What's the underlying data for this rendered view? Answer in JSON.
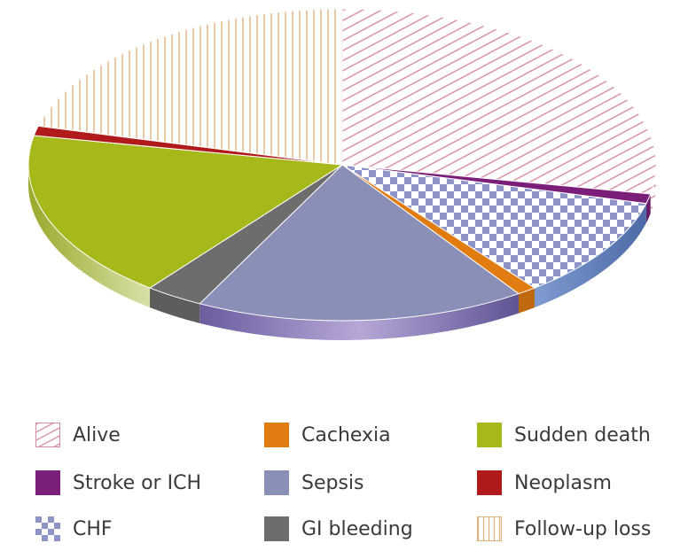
{
  "chart_data": {
    "type": "pie",
    "style": "3d-tilted",
    "legend_placement": "bottom",
    "slices": [
      {
        "label": "Alive",
        "value": 28.0,
        "color": "#d58aa3",
        "pattern": "diagonal-stripes"
      },
      {
        "label": "Stroke or ICH",
        "value": 1.0,
        "color": "#7b1e7a",
        "pattern": "solid"
      },
      {
        "label": "CHF",
        "value": 10.5,
        "color": "#8e95c6",
        "pattern": "checkerboard"
      },
      {
        "label": "Cachexia",
        "value": 1.0,
        "color": "#e07c10",
        "pattern": "solid"
      },
      {
        "label": "Sepsis",
        "value": 17.0,
        "color": "#8a8fb8",
        "pattern": "solid"
      },
      {
        "label": "GI bleeding",
        "value": 3.0,
        "color": "#6d6d6d",
        "pattern": "solid"
      },
      {
        "label": "Sudden death",
        "value": 17.5,
        "color": "#a7b81a",
        "pattern": "solid"
      },
      {
        "label": "Neoplasm",
        "value": 1.0,
        "color": "#b01a1a",
        "pattern": "solid"
      },
      {
        "label": "Follow-up loss",
        "value": 21.0,
        "color": "#e0b280",
        "pattern": "vertical-stripes"
      }
    ]
  },
  "legend": {
    "items": [
      {
        "label": "Alive",
        "slice": 0
      },
      {
        "label": "Cachexia",
        "slice": 3
      },
      {
        "label": "Sudden death",
        "slice": 6
      },
      {
        "label": "Stroke or ICH",
        "slice": 1
      },
      {
        "label": "Sepsis",
        "slice": 4
      },
      {
        "label": "Neoplasm",
        "slice": 7
      },
      {
        "label": "CHF",
        "slice": 2
      },
      {
        "label": "GI bleeding",
        "slice": 5
      },
      {
        "label": "Follow-up loss",
        "slice": 8
      }
    ]
  }
}
